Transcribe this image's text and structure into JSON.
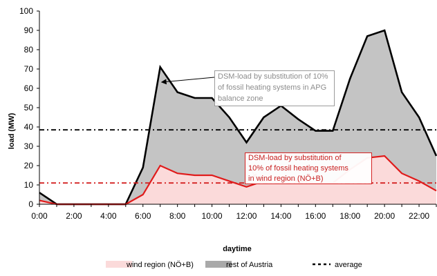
{
  "chart_data": {
    "type": "area",
    "xlabel": "daytime",
    "ylabel": "load (MW)",
    "ylim": [
      0,
      100
    ],
    "yticks": [
      "0",
      "10",
      "20",
      "30",
      "40",
      "50",
      "60",
      "70",
      "80",
      "90",
      "100"
    ],
    "x": [
      "0:00",
      "1:00",
      "2:00",
      "3:00",
      "4:00",
      "5:00",
      "6:00",
      "7:00",
      "8:00",
      "9:00",
      "10:00",
      "11:00",
      "12:00",
      "13:00",
      "14:00",
      "15:00",
      "16:00",
      "17:00",
      "18:00",
      "19:00",
      "20:00",
      "21:00",
      "22:00",
      "23:00"
    ],
    "xticks": [
      "0:00",
      "2:00",
      "4:00",
      "6:00",
      "8:00",
      "10:00",
      "12:00",
      "14:00",
      "16:00",
      "18:00",
      "20:00",
      "22:00"
    ],
    "series": [
      {
        "name": "wind region (NÖ+B)",
        "values": [
          2,
          0,
          0,
          0,
          0,
          0,
          5,
          20,
          16,
          15,
          15,
          12,
          9,
          12,
          14,
          12,
          11,
          11,
          18,
          24,
          25,
          16,
          12,
          7
        ],
        "color": "#e01b1b",
        "fill": "#fbdada"
      },
      {
        "name": "rest of Austria",
        "values": [
          6,
          0,
          0,
          0,
          0,
          0,
          19,
          71,
          58,
          55,
          55,
          45,
          32,
          45,
          51,
          44,
          38,
          38,
          65,
          87,
          90,
          58,
          45,
          25
        ],
        "color": "#000000",
        "fill": "#c4c4c4"
      }
    ],
    "averages": [
      {
        "series": "rest of Austria",
        "value": 38.5,
        "color": "#000000"
      },
      {
        "series": "wind region (NÖ+B)",
        "value": 11,
        "color": "#d42020"
      }
    ],
    "legend": {
      "position": "bottom",
      "items": [
        {
          "label": "wind region (NÖ+B)",
          "swatch": "#fbdada"
        },
        {
          "label": "rest of Austria",
          "swatch": "#a9a9a9"
        },
        {
          "label": "average",
          "swatch": "#000000"
        }
      ]
    },
    "annotations": [
      {
        "lines": [
          "DSM-load by substitution of 10%",
          "of fossil heating systems in APG",
          "balance zone"
        ],
        "target_x": "7:00",
        "target_y": 65,
        "color": "#8c8c8c"
      },
      {
        "lines": [
          "DSM-load by substitution of",
          "10% of fossil heating systems",
          "in wind region (NÖ+B)"
        ],
        "target_x": "12:00",
        "target_y": 12,
        "color": "#c81e1e"
      }
    ],
    "grid": false
  }
}
